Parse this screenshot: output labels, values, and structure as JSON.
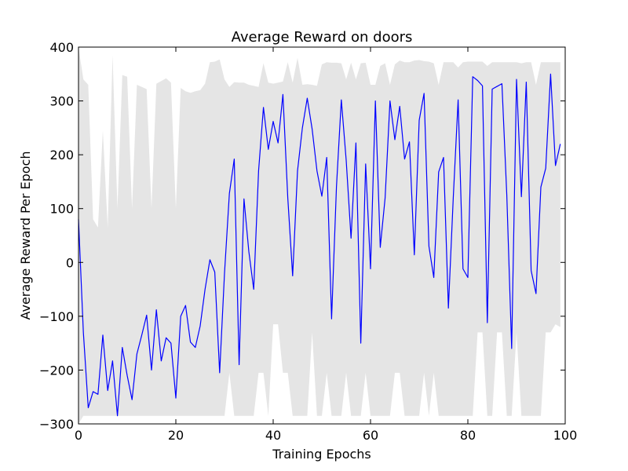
{
  "chart_data": {
    "type": "line",
    "title": "Average Reward on doors",
    "xlabel": "Training Epochs",
    "ylabel": "Average Reward Per Epoch",
    "xlim": [
      0,
      100
    ],
    "ylim": [
      -300,
      400
    ],
    "xticks": [
      0,
      20,
      40,
      60,
      80,
      100
    ],
    "yticks": [
      -300,
      -200,
      -100,
      0,
      100,
      200,
      300,
      400
    ],
    "xtick_labels": [
      "0",
      "20",
      "40",
      "60",
      "80",
      "100"
    ],
    "ytick_labels": [
      "−300",
      "−200",
      "−100",
      "0",
      "100",
      "200",
      "300",
      "400"
    ],
    "grid": false,
    "colors": {
      "line": "#0000ff",
      "band": "#e5e5e5"
    },
    "series": [
      {
        "x": [
          0,
          1,
          2,
          3,
          4,
          5,
          6,
          7,
          8,
          9,
          10,
          11,
          12,
          13,
          14,
          15,
          16,
          17,
          18,
          19,
          20,
          21,
          22,
          23,
          24,
          25,
          26,
          27,
          28,
          29,
          30,
          31,
          32,
          33,
          34,
          35,
          36,
          37,
          38,
          39,
          40,
          41,
          42,
          43,
          44,
          45,
          46,
          47,
          48,
          49,
          50,
          51,
          52,
          53,
          54,
          55,
          56,
          57,
          58,
          59,
          60,
          61,
          62,
          63,
          64,
          65,
          66,
          67,
          68,
          69,
          70,
          71,
          72,
          73,
          74,
          75,
          76,
          77,
          78,
          79,
          80,
          81,
          82,
          83,
          84,
          85,
          86,
          87,
          88,
          89,
          90,
          91,
          92,
          93,
          94,
          95,
          96,
          97,
          98,
          99
        ],
        "values": [
          80,
          -130,
          -270,
          -240,
          -245,
          -135,
          -238,
          -183,
          -285,
          -158,
          -210,
          -255,
          -170,
          -135,
          -98,
          -200,
          -88,
          -183,
          -140,
          -150,
          -252,
          -100,
          -80,
          -148,
          -158,
          -118,
          -50,
          5,
          -18,
          -205,
          -20,
          128,
          192,
          -190,
          118,
          20,
          -50,
          170,
          288,
          210,
          262,
          222,
          312,
          120,
          -25,
          170,
          250,
          305,
          248,
          170,
          123,
          195,
          -105,
          140,
          302,
          190,
          45,
          222,
          -150,
          183,
          -12,
          300,
          28,
          120,
          300,
          228,
          290,
          192,
          224,
          14,
          264,
          314,
          30,
          -28,
          168,
          195,
          -85,
          120,
          302,
          -12,
          -28,
          345,
          338,
          328,
          -112,
          322,
          327,
          332,
          125,
          -160,
          340,
          122,
          335,
          -15,
          -58,
          140,
          175,
          350,
          180,
          220
        ],
        "band_upper": [
          400,
          340,
          330,
          80,
          65,
          245,
          65,
          385,
          100,
          348,
          345,
          100,
          330,
          326,
          322,
          100,
          332,
          337,
          342,
          334,
          100,
          324,
          318,
          315,
          318,
          320,
          332,
          372,
          373,
          377,
          340,
          326,
          335,
          334,
          334,
          330,
          328,
          326,
          370,
          334,
          332,
          334,
          336,
          372,
          334,
          380,
          330,
          331,
          330,
          328,
          368,
          372,
          371,
          371,
          370,
          340,
          371,
          340,
          370,
          371,
          330,
          330,
          365,
          370,
          330,
          368,
          375,
          372,
          372,
          375,
          376,
          374,
          373,
          370,
          330,
          372,
          372,
          372,
          362,
          372,
          373,
          373,
          373,
          373,
          365,
          372,
          372,
          372,
          372,
          372,
          372,
          370,
          372,
          372,
          330,
          372,
          372,
          372,
          372,
          372
        ],
        "band_lower": [
          -300,
          -285,
          -285,
          -285,
          -285,
          -285,
          -285,
          -285,
          -285,
          -285,
          -285,
          -285,
          -285,
          -285,
          -285,
          -285,
          -285,
          -285,
          -285,
          -285,
          -285,
          -285,
          -285,
          -285,
          -285,
          -285,
          -285,
          -285,
          -285,
          -285,
          -285,
          -205,
          -285,
          -285,
          -285,
          -285,
          -285,
          -205,
          -205,
          -285,
          -115,
          -115,
          -205,
          -205,
          -285,
          -285,
          -285,
          -285,
          -130,
          -285,
          -285,
          -205,
          -285,
          -285,
          -285,
          -205,
          -285,
          -285,
          -285,
          -205,
          -285,
          -285,
          -285,
          -285,
          -285,
          -205,
          -205,
          -285,
          -285,
          -285,
          -285,
          -205,
          -285,
          -205,
          -285,
          -285,
          -285,
          -285,
          -285,
          -285,
          -285,
          -285,
          -130,
          -130,
          -285,
          -285,
          -130,
          -130,
          -285,
          -285,
          -130,
          -285,
          -285,
          -285,
          -285,
          -285,
          -130,
          -130,
          -115,
          -120
        ]
      }
    ]
  }
}
